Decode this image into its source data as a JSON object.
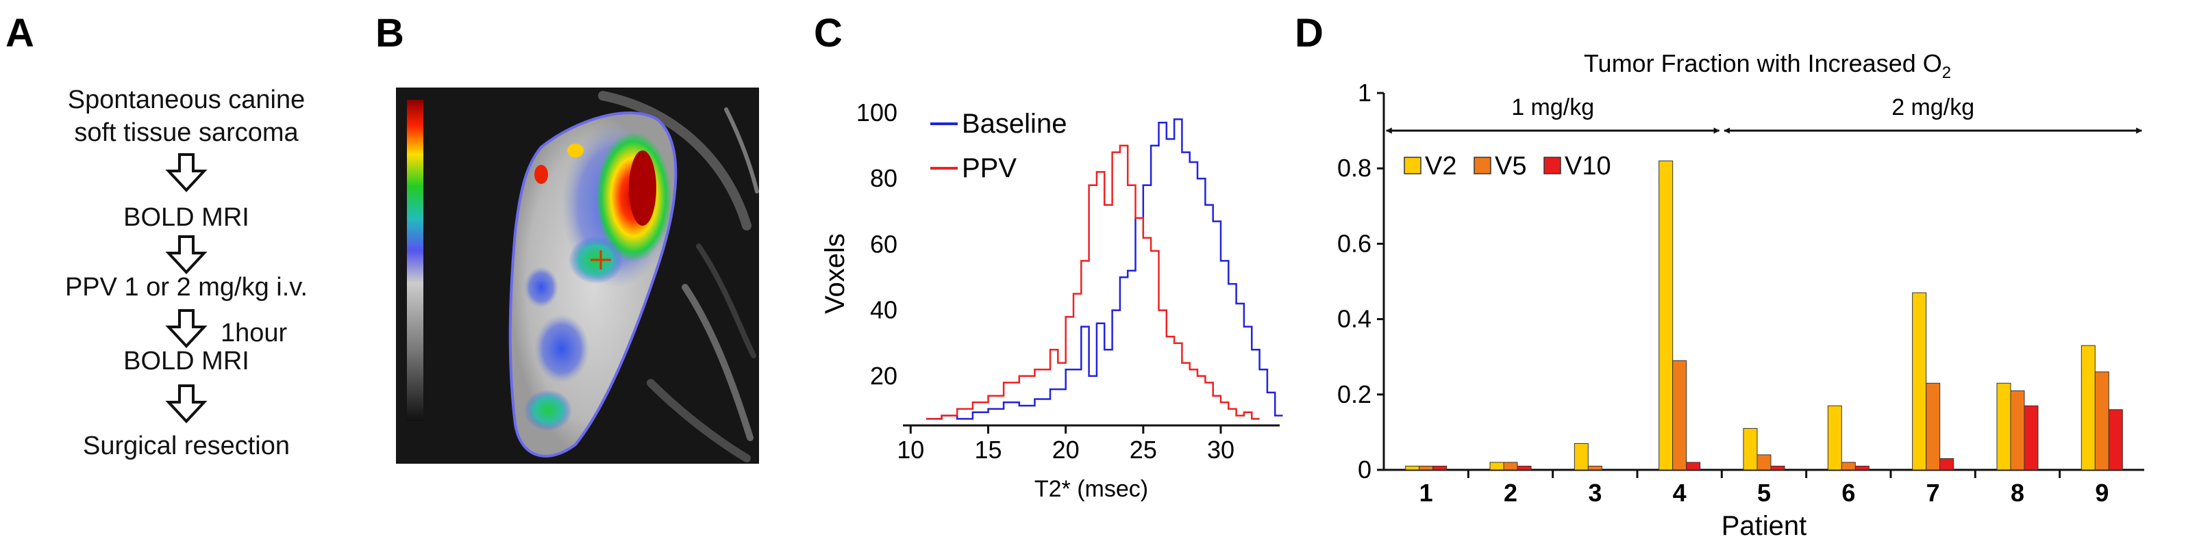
{
  "panels": {
    "a": {
      "letter": "A",
      "steps": [
        "Spontaneous canine",
        "soft tissue sarcoma",
        "BOLD MRI",
        "PPV 1 or 2 mg/kg i.v.",
        "BOLD MRI",
        "Surgical resection"
      ],
      "side_note": "1hour"
    },
    "b": {
      "letter": "B"
    },
    "c": {
      "letter": "C"
    },
    "d": {
      "letter": "D"
    }
  },
  "colors": {
    "baseline": "#2222dd",
    "ppv": "#ee2222",
    "v2": "#ffcc00",
    "v5": "#f07a1a",
    "v10": "#e81c1c"
  },
  "chart_data": [
    {
      "id": "histogram",
      "type": "line",
      "style": "step",
      "title": "",
      "xlabel": "T2* (msec)",
      "ylabel": "Voxels",
      "xlim": [
        9.5,
        33.8
      ],
      "ylim": [
        5,
        101
      ],
      "x_ticks": [
        10,
        15,
        20,
        25,
        30
      ],
      "y_ticks": [
        20,
        40,
        60,
        80,
        100
      ],
      "legend": "top-left",
      "series": [
        {
          "name": "Baseline",
          "color": "#2222dd",
          "x": [
            11.0,
            12.0,
            13.0,
            14.0,
            15.0,
            16.0,
            17.0,
            18.0,
            19.0,
            20.0,
            21.0,
            21.5,
            22.0,
            22.5,
            23.0,
            23.5,
            24.0,
            24.5,
            25.0,
            25.5,
            26.0,
            26.5,
            27.0,
            27.5,
            28.0,
            28.5,
            29.0,
            29.5,
            30.0,
            30.5,
            31.0,
            31.5,
            32.0,
            32.5,
            33.0,
            33.5
          ],
          "y": [
            7,
            8,
            7,
            9,
            10,
            12,
            11,
            13,
            16,
            22,
            35,
            20,
            36,
            28,
            40,
            50,
            52,
            68,
            78,
            90,
            97,
            92,
            98,
            88,
            85,
            80,
            72,
            67,
            55,
            48,
            42,
            35,
            28,
            22,
            15,
            8
          ]
        },
        {
          "name": "PPV",
          "color": "#ee2222",
          "x": [
            11.0,
            12.0,
            13.0,
            14.0,
            15.0,
            16.0,
            17.0,
            18.0,
            19.0,
            19.5,
            20.0,
            20.5,
            21.0,
            21.5,
            22.0,
            22.5,
            23.0,
            23.5,
            24.0,
            24.5,
            25.0,
            25.5,
            26.0,
            26.5,
            27.0,
            27.5,
            28.0,
            28.5,
            29.0,
            29.5,
            30.0,
            30.5,
            31.0,
            31.5,
            32.0
          ],
          "y": [
            7,
            8,
            10,
            12,
            14,
            18,
            20,
            22,
            28,
            24,
            38,
            45,
            55,
            78,
            82,
            72,
            88,
            90,
            78,
            68,
            62,
            58,
            40,
            32,
            30,
            24,
            22,
            20,
            18,
            14,
            12,
            10,
            8,
            9,
            7
          ]
        }
      ]
    },
    {
      "id": "tumor-fraction",
      "type": "bar",
      "title": "Tumor Fraction with Increased O",
      "title_subscript": "2",
      "xlabel": "Patient",
      "ylabel": "",
      "ylim": [
        0,
        1
      ],
      "y_ticks": [
        0,
        0.2,
        0.4,
        0.6,
        0.8,
        1
      ],
      "y_tick_labels": [
        "0",
        "0.2",
        "0.4",
        "0.6",
        "0.8",
        "1"
      ],
      "categories": [
        "1",
        "2",
        "3",
        "4",
        "5",
        "6",
        "7",
        "8",
        "9"
      ],
      "legend": "top-left",
      "series": [
        {
          "name": "V2",
          "color": "#ffcc00",
          "values": [
            0.01,
            0.02,
            0.07,
            0.82,
            0.11,
            0.17,
            0.47,
            0.23,
            0.33
          ]
        },
        {
          "name": "V5",
          "color": "#f07a1a",
          "values": [
            0.01,
            0.02,
            0.01,
            0.29,
            0.04,
            0.02,
            0.23,
            0.21,
            0.26
          ]
        },
        {
          "name": "V10",
          "color": "#e81c1c",
          "values": [
            0.01,
            0.01,
            0.0,
            0.02,
            0.01,
            0.01,
            0.03,
            0.17,
            0.16
          ]
        }
      ],
      "dose_groups": [
        {
          "label": "1 mg/kg",
          "from": "1",
          "to": "4"
        },
        {
          "label": "2 mg/kg",
          "from": "5",
          "to": "9"
        }
      ]
    }
  ]
}
